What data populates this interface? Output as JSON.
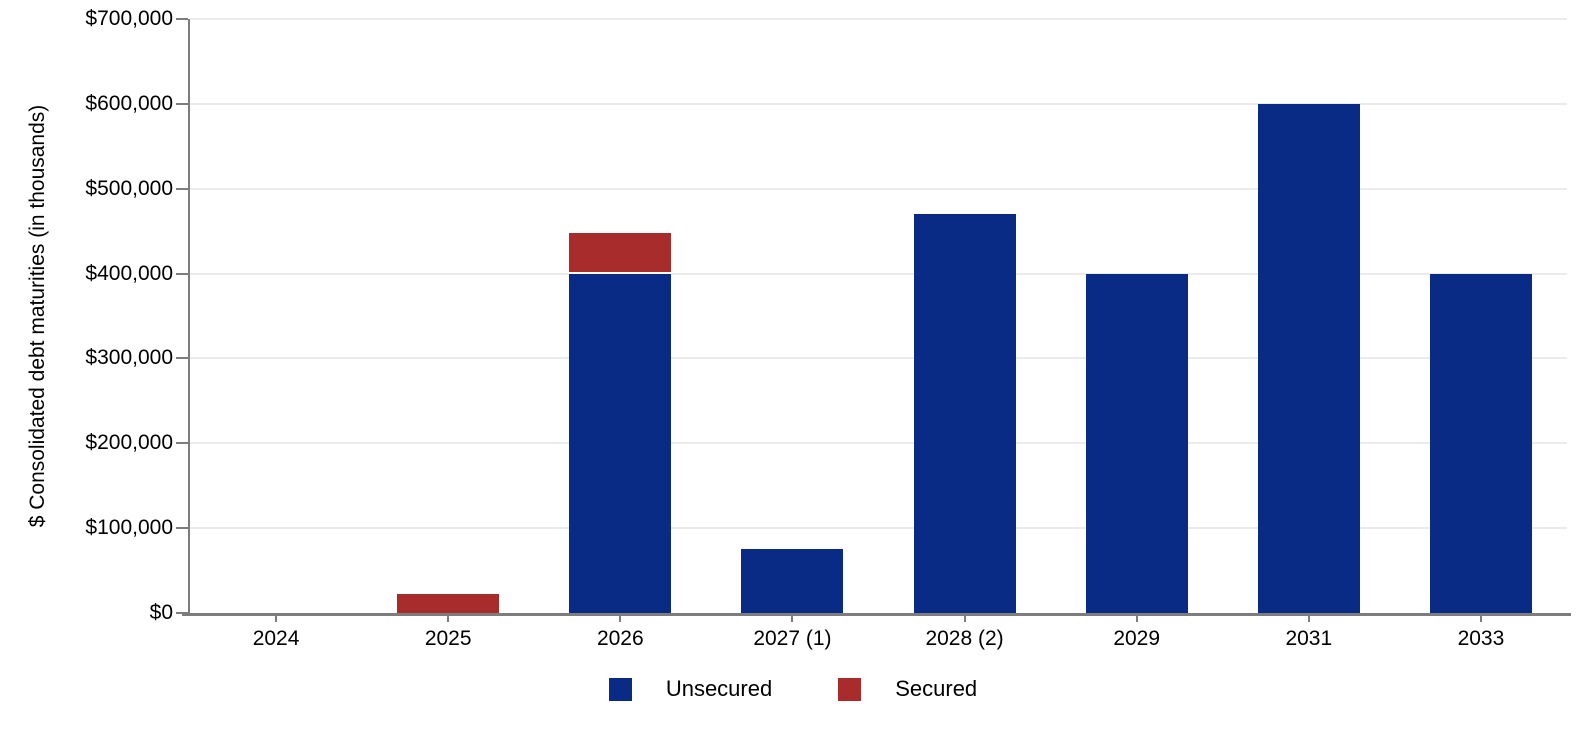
{
  "chart_data": {
    "type": "bar",
    "stacked": true,
    "title": "",
    "xlabel": "",
    "ylabel": "$ Consolidated debt maturities (in thousands)",
    "categories": [
      "2024",
      "2025",
      "2026",
      "2027 (1)",
      "2028 (2)",
      "2029",
      "2031",
      "2033"
    ],
    "series": [
      {
        "name": "Unsecured",
        "color": "#0A2B85",
        "values": [
          0,
          0,
          400000,
          75000,
          470000,
          400000,
          600000,
          400000
        ]
      },
      {
        "name": "Secured",
        "color": "#A72C2B",
        "values": [
          0,
          22000,
          46000,
          0,
          0,
          0,
          0,
          0
        ]
      }
    ],
    "ylim": [
      0,
      700000
    ],
    "y_ticks": [
      {
        "value": 0,
        "label": "$0"
      },
      {
        "value": 100000,
        "label": "$100,000"
      },
      {
        "value": 200000,
        "label": "$200,000"
      },
      {
        "value": 300000,
        "label": "$300,000"
      },
      {
        "value": 400000,
        "label": "$400,000"
      },
      {
        "value": 500000,
        "label": "$500,000"
      },
      {
        "value": 600000,
        "label": "$600,000"
      },
      {
        "value": 700000,
        "label": "$700,000"
      }
    ],
    "grid": true,
    "legend_position": "bottom",
    "colors": {
      "axis": "#7d7d7d",
      "gridline": "#ebebeb",
      "background": "#ffffff",
      "text": "#000000"
    }
  }
}
